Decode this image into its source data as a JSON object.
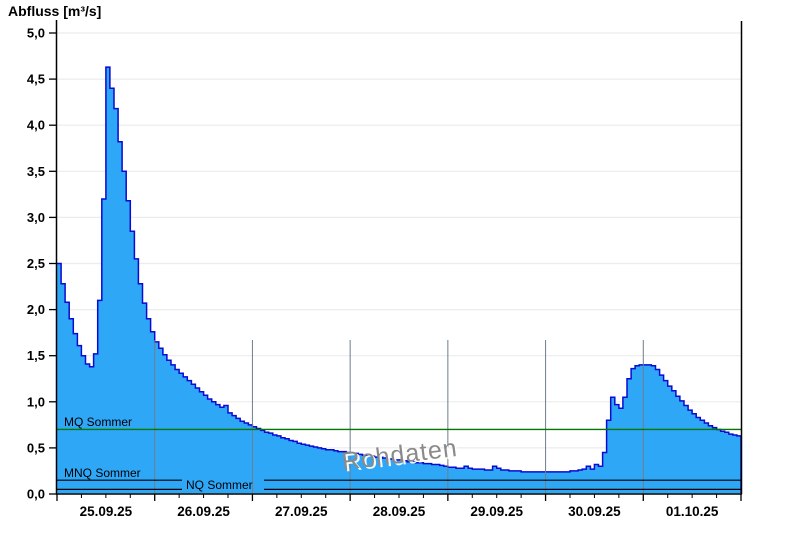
{
  "title": "Abfluss [m³/s]",
  "watermark": "Rohdaten",
  "chart_data": {
    "type": "area",
    "title": "Abfluss [m³/s]",
    "ylabel": "Abfluss [m³/s]",
    "ylim": [
      0,
      5
    ],
    "y_tick_step": 0.5,
    "y_tick_labels": [
      "0,0",
      "0,5",
      "1,0",
      "1,5",
      "2,0",
      "2,5",
      "3,0",
      "3,5",
      "4,0",
      "4,5",
      "5,0"
    ],
    "x_tick_labels": [
      "25.09.25",
      "26.09.25",
      "27.09.25",
      "28.09.25",
      "29.09.25",
      "30.09.25",
      "01.10.25"
    ],
    "grid": {
      "horizontal": true,
      "vertical_day_lines": true,
      "legend": "none"
    },
    "series": {
      "name": "Abfluss",
      "unit": "m³/s",
      "start": "25.09.25 00:00",
      "interval_hours": 1,
      "hours_total": 168,
      "values": [
        2.5,
        2.28,
        2.08,
        1.9,
        1.74,
        1.61,
        1.5,
        1.41,
        1.38,
        1.52,
        2.1,
        3.2,
        4.63,
        4.4,
        4.18,
        3.82,
        3.5,
        3.18,
        2.85,
        2.55,
        2.28,
        2.07,
        1.9,
        1.76,
        1.65,
        1.58,
        1.51,
        1.45,
        1.4,
        1.35,
        1.31,
        1.27,
        1.23,
        1.19,
        1.15,
        1.11,
        1.07,
        1.03,
        1.0,
        0.97,
        0.94,
        0.96,
        0.88,
        0.85,
        0.82,
        0.79,
        0.77,
        0.75,
        0.73,
        0.71,
        0.69,
        0.67,
        0.66,
        0.64,
        0.63,
        0.61,
        0.6,
        0.58,
        0.57,
        0.55,
        0.54,
        0.53,
        0.52,
        0.51,
        0.5,
        0.49,
        0.48,
        0.48,
        0.47,
        0.46,
        0.46,
        0.45,
        0.44,
        0.44,
        0.43,
        0.42,
        0.42,
        0.41,
        0.4,
        0.4,
        0.39,
        0.38,
        0.38,
        0.37,
        0.37,
        0.36,
        0.35,
        0.35,
        0.34,
        0.34,
        0.33,
        0.33,
        0.32,
        0.32,
        0.31,
        0.3,
        0.29,
        0.29,
        0.28,
        0.28,
        0.3,
        0.28,
        0.27,
        0.27,
        0.27,
        0.26,
        0.26,
        0.3,
        0.28,
        0.26,
        0.26,
        0.25,
        0.25,
        0.25,
        0.24,
        0.24,
        0.24,
        0.24,
        0.24,
        0.24,
        0.24,
        0.24,
        0.24,
        0.24,
        0.24,
        0.24,
        0.25,
        0.25,
        0.26,
        0.27,
        0.3,
        0.27,
        0.32,
        0.3,
        0.45,
        0.8,
        1.05,
        0.97,
        0.93,
        1.05,
        1.25,
        1.36,
        1.39,
        1.4,
        1.4,
        1.4,
        1.39,
        1.35,
        1.29,
        1.23,
        1.17,
        1.12,
        1.06,
        1.01,
        0.96,
        0.91,
        0.87,
        0.83,
        0.8,
        0.77,
        0.74,
        0.72,
        0.7,
        0.68,
        0.67,
        0.65,
        0.64,
        0.63,
        0.62
      ]
    },
    "reference_lines": [
      {
        "name": "MQ Sommer",
        "value": 0.7,
        "color": "#007700"
      },
      {
        "name": "MNQ Sommer",
        "value": 0.15,
        "color": "#000000"
      },
      {
        "name": "NQ Sommer",
        "value": 0.05,
        "color": "#000000"
      }
    ],
    "colors": {
      "fill": "#2fa7f7",
      "line": "#0a0ad2",
      "h_grid": "#ececec",
      "v_grid": "#6e7e8e",
      "axis": "#000000",
      "background": "#ffffff"
    }
  }
}
